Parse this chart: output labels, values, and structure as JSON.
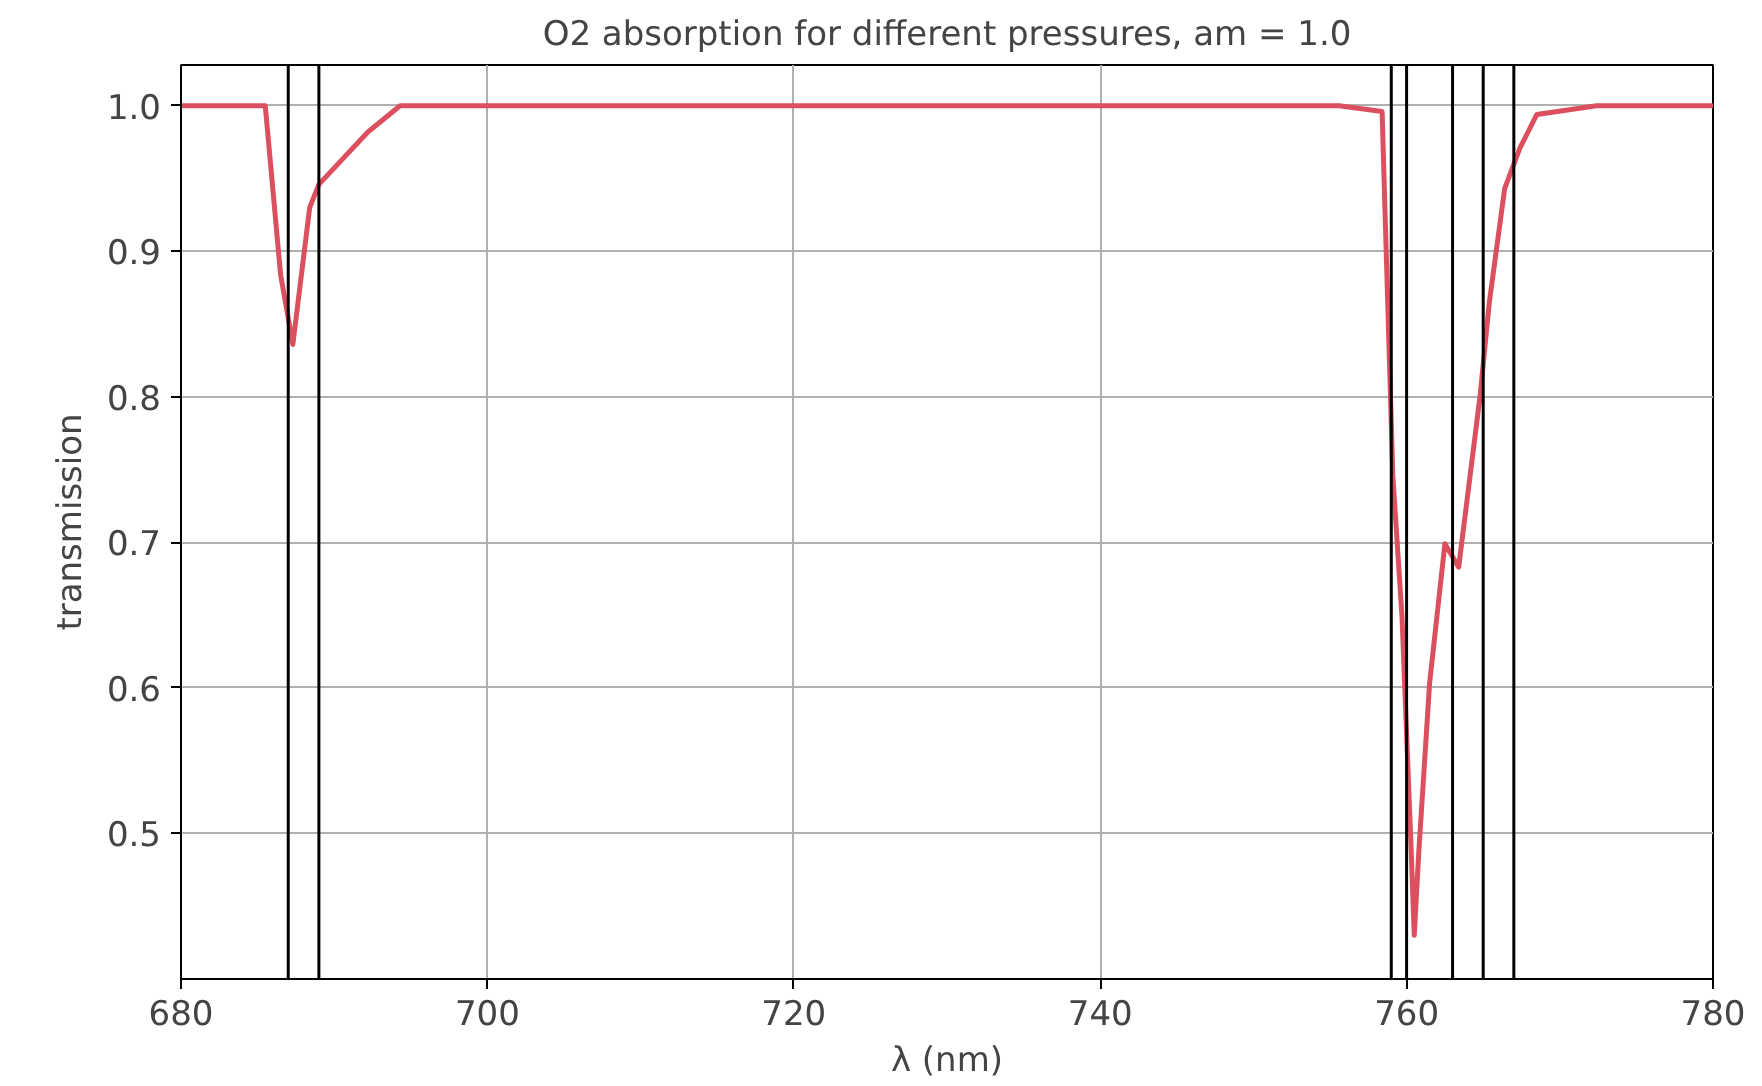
{
  "chart_data": {
    "type": "line",
    "title": "O2 absorption for different pressures, am = 1.0",
    "xlabel": "λ (nm)",
    "ylabel": "transmission",
    "x": [
      680,
      685.5,
      686.5,
      687.3,
      688.4,
      689.0,
      692.2,
      694.3,
      755.6,
      758.4,
      759.1,
      759.7,
      760.3,
      760.5,
      760.8,
      761.5,
      762.5,
      763.4,
      764.8,
      765.4,
      766.4,
      767.4,
      768.5,
      772.4,
      780
    ],
    "series": [
      {
        "color": "#dc4f5f",
        "values": [
          1.0,
          1.0,
          0.884,
          0.836,
          0.93,
          0.946,
          0.982,
          1.0,
          1.0,
          0.996,
          0.746,
          0.649,
          0.488,
          0.43,
          0.488,
          0.603,
          0.699,
          0.683,
          0.801,
          0.865,
          0.943,
          0.971,
          0.994,
          1.0,
          1.0
        ]
      }
    ],
    "xlim": [
      680,
      780
    ],
    "ylim": [
      0.4,
      1.028
    ],
    "xticks": [
      680,
      700,
      720,
      740,
      760,
      780
    ],
    "yticks": [
      0.5,
      0.6,
      0.7,
      0.8,
      0.9,
      {
        "value": 1,
        "label": "1.0"
      }
    ],
    "ref_lines": [
      {
        "axis": "x",
        "value": 687,
        "color": "#000000"
      },
      {
        "axis": "x",
        "value": 689,
        "color": "#000000"
      },
      {
        "axis": "x",
        "value": 759,
        "color": "#000000"
      },
      {
        "axis": "x",
        "value": 760,
        "color": "#000000"
      },
      {
        "axis": "x",
        "value": 763,
        "color": "#000000"
      },
      {
        "axis": "x",
        "value": 765,
        "color": "#000000"
      },
      {
        "axis": "x",
        "value": 767,
        "color": "#000000"
      }
    ],
    "grid": true,
    "line_style": "solid",
    "marker": "none"
  }
}
